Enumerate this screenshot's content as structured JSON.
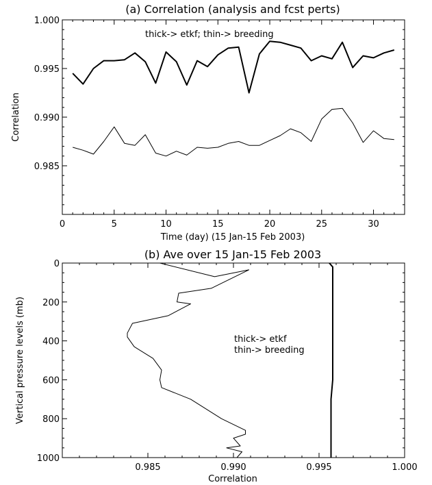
{
  "chart_data": [
    {
      "type": "line",
      "title": "(a) Correlation (analysis and fcst perts)",
      "xlabel": "Time (day) (15 Jan-15 Feb 2003)",
      "ylabel": "Correlation",
      "xlim": [
        0,
        33
      ],
      "ylim": [
        0.98,
        1.0
      ],
      "xticks": [
        "0",
        "5",
        "10",
        "15",
        "20",
        "25",
        "30"
      ],
      "xtick_values": [
        0,
        5,
        10,
        15,
        20,
        25,
        30
      ],
      "yticks": [
        "0.985",
        "0.990",
        "0.995",
        "1.000"
      ],
      "ytick_values": [
        0.985,
        0.99,
        0.995,
        1.0
      ],
      "annotation": "thick-> etkf;  thin-> breeding",
      "series": [
        {
          "x": [
            1,
            2,
            3,
            4,
            5,
            6,
            7,
            8,
            9,
            10,
            11,
            12,
            13,
            14,
            15,
            16,
            17,
            18,
            19,
            20,
            21,
            22,
            23,
            24,
            25,
            26,
            27,
            28,
            29,
            30,
            31,
            32
          ],
          "values": [
            0.9945,
            0.9934,
            0.995,
            0.9958,
            0.9958,
            0.9959,
            0.9966,
            0.9957,
            0.9935,
            0.9967,
            0.9957,
            0.9933,
            0.9958,
            0.9952,
            0.9964,
            0.9971,
            0.9972,
            0.9925,
            0.9965,
            0.9978,
            0.9977,
            0.9974,
            0.9971,
            0.9958,
            0.9963,
            0.996,
            0.9977,
            0.9951,
            0.9963,
            0.9961,
            0.9966,
            0.9969
          ]
        },
        {
          "x": [
            1,
            2,
            3,
            4,
            5,
            6,
            7,
            8,
            9,
            10,
            11,
            12,
            13,
            14,
            15,
            16,
            17,
            18,
            19,
            20,
            21,
            22,
            23,
            24,
            25,
            26,
            27,
            28,
            29,
            30,
            31,
            32
          ],
          "values": [
            0.9869,
            0.9866,
            0.9862,
            0.9875,
            0.989,
            0.9873,
            0.9871,
            0.9882,
            0.9863,
            0.986,
            0.9865,
            0.9861,
            0.9869,
            0.9868,
            0.9869,
            0.9873,
            0.9875,
            0.9871,
            0.9871,
            0.9876,
            0.9881,
            0.9888,
            0.9884,
            0.9875,
            0.9898,
            0.9908,
            0.9909,
            0.9894,
            0.9874,
            0.9886,
            0.9878,
            0.9877
          ]
        }
      ]
    },
    {
      "type": "line",
      "title": "(b) Ave over 15 Jan-15 Feb 2003",
      "xlabel": "Correlation",
      "ylabel": "Vertical pressure levels (mb)",
      "xlim": [
        0.98,
        1.0
      ],
      "ylim": [
        1000,
        0
      ],
      "xticks": [
        "0.985",
        "0.990",
        "0.995",
        "1.000"
      ],
      "xtick_values": [
        0.985,
        0.99,
        0.995,
        1.0
      ],
      "yticks": [
        "0",
        "200",
        "400",
        "600",
        "800",
        "1000"
      ],
      "ytick_values": [
        0,
        200,
        400,
        600,
        800,
        1000
      ],
      "annotation": [
        "thick-> etkf",
        "thin-> breeding"
      ],
      "series": [
        {
          "x": [
            0.9956,
            0.9958,
            0.9958,
            0.9958,
            0.9958,
            0.9958,
            0.9958,
            0.9958,
            0.9958,
            0.9958,
            0.9957,
            0.9957,
            0.9957,
            0.9957,
            0.9957,
            0.9957,
            0.9957
          ],
          "y": [
            0,
            20,
            50,
            100,
            150,
            200,
            300,
            400,
            500,
            600,
            700,
            800,
            850,
            900,
            925,
            950,
            1000
          ]
        },
        {
          "x": [
            0.9857,
            0.9889,
            0.9909,
            0.9887,
            0.9868,
            0.9867,
            0.9875,
            0.9862,
            0.9841,
            0.9838,
            0.9838,
            0.9842,
            0.9853,
            0.9858,
            0.9857,
            0.9858,
            0.9875,
            0.9893,
            0.9907,
            0.9907,
            0.99,
            0.9904,
            0.9896,
            0.9905,
            0.9902
          ],
          "y": [
            0,
            70,
            35,
            130,
            155,
            200,
            210,
            270,
            310,
            360,
            380,
            430,
            490,
            550,
            600,
            640,
            700,
            800,
            860,
            880,
            900,
            940,
            950,
            970,
            1000
          ]
        }
      ]
    }
  ]
}
